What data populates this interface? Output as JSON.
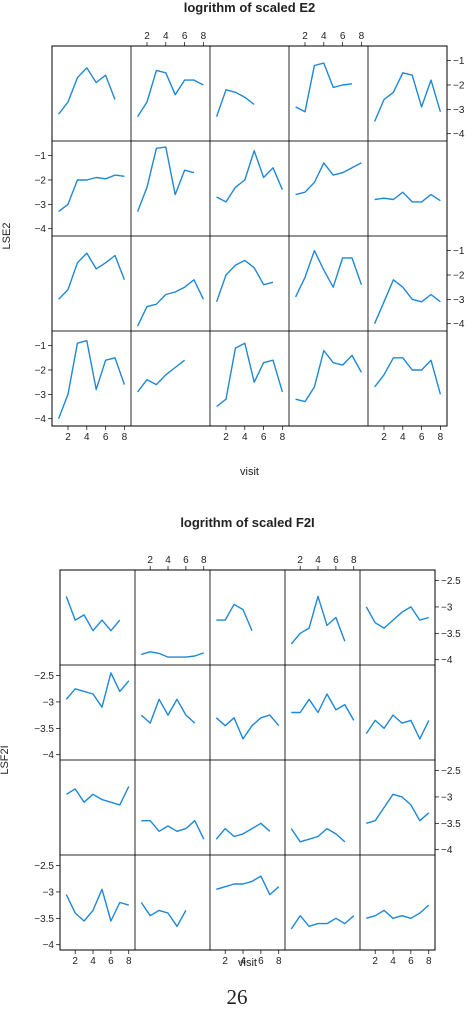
{
  "page_number": "26",
  "colors": {
    "line": "#1f88d6",
    "frame": "#000000",
    "text": "#222222"
  },
  "chart_data": [
    {
      "type": "line",
      "layout": "lattice 5 columns x 4 rows",
      "title": "logrithm of scaled E2",
      "xlabel": "visit",
      "ylabel": "LSE2",
      "x_ticks": [
        2,
        4,
        6,
        8
      ],
      "y_ticks": [
        -1,
        -2,
        -3,
        -4
      ],
      "xlim": [
        0.3,
        8.7
      ],
      "ylim": [
        -4.3,
        -0.4
      ],
      "grid": false,
      "panels": [
        [
          [
            1,
            -3.2
          ],
          [
            2,
            -2.7
          ],
          [
            3,
            -1.7
          ],
          [
            4,
            -1.3
          ],
          [
            5,
            -1.9
          ],
          [
            6,
            -1.6
          ],
          [
            7,
            -2.6
          ]
        ],
        [
          [
            1,
            -3.3
          ],
          [
            2,
            -2.7
          ],
          [
            3,
            -1.4
          ],
          [
            4,
            -1.5
          ],
          [
            5,
            -2.4
          ],
          [
            6,
            -1.8
          ],
          [
            7,
            -1.8
          ],
          [
            8,
            -2.0
          ]
        ],
        [
          [
            1,
            -3.3
          ],
          [
            2,
            -2.2
          ],
          [
            3,
            -2.3
          ],
          [
            4,
            -2.5
          ],
          [
            5,
            -2.8
          ]
        ],
        [
          [
            1,
            -2.9
          ],
          [
            2,
            -3.1
          ],
          [
            3,
            -1.2
          ],
          [
            4,
            -1.1
          ],
          [
            5,
            -2.1
          ],
          [
            6,
            -2.0
          ],
          [
            7,
            -1.95
          ]
        ],
        [
          [
            1,
            -3.5
          ],
          [
            2,
            -2.6
          ],
          [
            3,
            -2.3
          ],
          [
            4,
            -1.5
          ],
          [
            5,
            -1.6
          ],
          [
            6,
            -2.9
          ],
          [
            7,
            -1.8
          ],
          [
            8,
            -3.1
          ]
        ],
        [
          [
            1,
            -3.3
          ],
          [
            2,
            -3.0
          ],
          [
            3,
            -2.0
          ],
          [
            4,
            -2.0
          ],
          [
            5,
            -1.9
          ],
          [
            6,
            -1.95
          ],
          [
            7,
            -1.8
          ],
          [
            8,
            -1.85
          ]
        ],
        [
          [
            1,
            -3.3
          ],
          [
            2,
            -2.3
          ],
          [
            3,
            -0.7
          ],
          [
            4,
            -0.65
          ],
          [
            5,
            -2.6
          ],
          [
            6,
            -1.6
          ],
          [
            7,
            -1.7
          ]
        ],
        [
          [
            1,
            -2.7
          ],
          [
            2,
            -2.9
          ],
          [
            3,
            -2.3
          ],
          [
            4,
            -2.0
          ],
          [
            5,
            -0.8
          ],
          [
            6,
            -1.9
          ],
          [
            7,
            -1.5
          ],
          [
            8,
            -2.4
          ]
        ],
        [
          [
            1,
            -2.6
          ],
          [
            2,
            -2.5
          ],
          [
            3,
            -2.1
          ],
          [
            4,
            -1.3
          ],
          [
            5,
            -1.8
          ],
          [
            6,
            -1.7
          ],
          [
            7,
            -1.5
          ],
          [
            8,
            -1.3
          ]
        ],
        [
          [
            1,
            -2.8
          ],
          [
            2,
            -2.75
          ],
          [
            3,
            -2.8
          ],
          [
            4,
            -2.5
          ],
          [
            5,
            -2.9
          ],
          [
            6,
            -2.9
          ],
          [
            7,
            -2.6
          ],
          [
            8,
            -2.85
          ]
        ],
        [
          [
            1,
            -3.0
          ],
          [
            2,
            -2.6
          ],
          [
            3,
            -1.5
          ],
          [
            4,
            -1.1
          ],
          [
            5,
            -1.75
          ],
          [
            6,
            -1.5
          ],
          [
            7,
            -1.2
          ],
          [
            8,
            -2.2
          ]
        ],
        [
          [
            1,
            -4.1
          ],
          [
            2,
            -3.3
          ],
          [
            3,
            -3.2
          ],
          [
            4,
            -2.8
          ],
          [
            5,
            -2.7
          ],
          [
            6,
            -2.5
          ],
          [
            7,
            -2.2
          ],
          [
            8,
            -3.0
          ]
        ],
        [
          [
            1,
            -3.1
          ],
          [
            2,
            -2.0
          ],
          [
            3,
            -1.6
          ],
          [
            4,
            -1.4
          ],
          [
            5,
            -1.7
          ],
          [
            6,
            -2.4
          ],
          [
            7,
            -2.3
          ]
        ],
        [
          [
            1,
            -2.9
          ],
          [
            2,
            -2.1
          ],
          [
            3,
            -1.0
          ],
          [
            4,
            -1.8
          ],
          [
            5,
            -2.5
          ],
          [
            6,
            -1.3
          ],
          [
            7,
            -1.3
          ],
          [
            8,
            -2.4
          ]
        ],
        [
          [
            1,
            -4.0
          ],
          [
            2,
            -3.1
          ],
          [
            3,
            -2.2
          ],
          [
            4,
            -2.5
          ],
          [
            5,
            -3.0
          ],
          [
            6,
            -3.1
          ],
          [
            7,
            -2.8
          ],
          [
            8,
            -3.1
          ]
        ],
        [
          [
            1,
            -4.0
          ],
          [
            2,
            -3.0
          ],
          [
            3,
            -0.9
          ],
          [
            4,
            -0.8
          ],
          [
            5,
            -2.8
          ],
          [
            6,
            -1.6
          ],
          [
            7,
            -1.5
          ],
          [
            8,
            -2.6
          ]
        ],
        [
          [
            1,
            -2.9
          ],
          [
            2,
            -2.4
          ],
          [
            3,
            -2.6
          ],
          [
            4,
            -2.2
          ],
          [
            5,
            -1.9
          ],
          [
            6,
            -1.6
          ]
        ],
        [
          [
            1,
            -3.5
          ],
          [
            2,
            -3.2
          ],
          [
            3,
            -1.1
          ],
          [
            4,
            -0.9
          ],
          [
            5,
            -2.5
          ],
          [
            6,
            -1.7
          ],
          [
            7,
            -1.6
          ],
          [
            8,
            -2.9
          ]
        ],
        [
          [
            1,
            -3.2
          ],
          [
            2,
            -3.3
          ],
          [
            3,
            -2.7
          ],
          [
            4,
            -1.2
          ],
          [
            5,
            -1.7
          ],
          [
            6,
            -1.8
          ],
          [
            7,
            -1.4
          ],
          [
            8,
            -2.1
          ]
        ],
        [
          [
            1,
            -2.7
          ],
          [
            2,
            -2.2
          ],
          [
            3,
            -1.5
          ],
          [
            4,
            -1.5
          ],
          [
            5,
            -2.0
          ],
          [
            6,
            -2.0
          ],
          [
            7,
            -1.6
          ],
          [
            8,
            -3.0
          ]
        ]
      ]
    },
    {
      "type": "line",
      "layout": "lattice 5 columns x 4 rows",
      "title": "logrithm of scaled F2I",
      "xlabel": "visit",
      "ylabel": "LSF2I",
      "x_ticks": [
        2,
        4,
        6,
        8
      ],
      "y_ticks": [
        -2.5,
        -3.0,
        -3.5,
        -4.0
      ],
      "xlim": [
        0.3,
        8.7
      ],
      "ylim": [
        -4.1,
        -2.3
      ],
      "grid": false,
      "panels": [
        [
          [
            1,
            -2.8
          ],
          [
            2,
            -3.25
          ],
          [
            3,
            -3.15
          ],
          [
            4,
            -3.45
          ],
          [
            5,
            -3.25
          ],
          [
            6,
            -3.45
          ],
          [
            7,
            -3.25
          ]
        ],
        [
          [
            1,
            -3.9
          ],
          [
            2,
            -3.85
          ],
          [
            3,
            -3.88
          ],
          [
            4,
            -3.95
          ],
          [
            5,
            -3.95
          ],
          [
            6,
            -3.95
          ],
          [
            7,
            -3.93
          ],
          [
            8,
            -3.87
          ]
        ],
        [
          [
            1,
            -3.25
          ],
          [
            2,
            -3.25
          ],
          [
            3,
            -2.95
          ],
          [
            4,
            -3.05
          ],
          [
            5,
            -3.45
          ]
        ],
        [
          [
            1,
            -3.7
          ],
          [
            2,
            -3.5
          ],
          [
            3,
            -3.4
          ],
          [
            4,
            -2.8
          ],
          [
            5,
            -3.35
          ],
          [
            6,
            -3.2
          ],
          [
            7,
            -3.65
          ]
        ],
        [
          [
            1,
            -3.0
          ],
          [
            2,
            -3.3
          ],
          [
            3,
            -3.4
          ],
          [
            4,
            -3.25
          ],
          [
            5,
            -3.1
          ],
          [
            6,
            -3.0
          ],
          [
            7,
            -3.25
          ],
          [
            8,
            -3.2
          ]
        ],
        [
          [
            1,
            -2.95
          ],
          [
            2,
            -2.75
          ],
          [
            3,
            -2.8
          ],
          [
            4,
            -2.85
          ],
          [
            5,
            -3.1
          ],
          [
            6,
            -2.45
          ],
          [
            7,
            -2.8
          ],
          [
            8,
            -2.6
          ]
        ],
        [
          [
            1,
            -3.25
          ],
          [
            2,
            -3.4
          ],
          [
            3,
            -2.95
          ],
          [
            4,
            -3.25
          ],
          [
            5,
            -2.95
          ],
          [
            6,
            -3.25
          ],
          [
            7,
            -3.4
          ]
        ],
        [
          [
            1,
            -3.3
          ],
          [
            2,
            -3.45
          ],
          [
            3,
            -3.3
          ],
          [
            4,
            -3.7
          ],
          [
            5,
            -3.45
          ],
          [
            6,
            -3.3
          ],
          [
            7,
            -3.25
          ],
          [
            8,
            -3.45
          ]
        ],
        [
          [
            1,
            -3.2
          ],
          [
            2,
            -3.2
          ],
          [
            3,
            -2.95
          ],
          [
            4,
            -3.2
          ],
          [
            5,
            -2.85
          ],
          [
            6,
            -3.15
          ],
          [
            7,
            -3.05
          ],
          [
            8,
            -3.35
          ]
        ],
        [
          [
            1,
            -3.6
          ],
          [
            2,
            -3.35
          ],
          [
            3,
            -3.5
          ],
          [
            4,
            -3.25
          ],
          [
            5,
            -3.4
          ],
          [
            6,
            -3.35
          ],
          [
            7,
            -3.7
          ],
          [
            8,
            -3.35
          ]
        ],
        [
          [
            1,
            -2.95
          ],
          [
            2,
            -2.85
          ],
          [
            3,
            -3.1
          ],
          [
            4,
            -2.95
          ],
          [
            5,
            -3.05
          ],
          [
            6,
            -3.1
          ],
          [
            7,
            -3.15
          ],
          [
            8,
            -2.8
          ]
        ],
        [
          [
            1,
            -3.45
          ],
          [
            2,
            -3.45
          ],
          [
            3,
            -3.65
          ],
          [
            4,
            -3.55
          ],
          [
            5,
            -3.65
          ],
          [
            6,
            -3.6
          ],
          [
            7,
            -3.45
          ],
          [
            8,
            -3.8
          ]
        ],
        [
          [
            1,
            -3.8
          ],
          [
            2,
            -3.6
          ],
          [
            3,
            -3.75
          ],
          [
            4,
            -3.7
          ],
          [
            5,
            -3.6
          ],
          [
            6,
            -3.5
          ],
          [
            7,
            -3.65
          ]
        ],
        [
          [
            1,
            -3.6
          ],
          [
            2,
            -3.85
          ],
          [
            3,
            -3.8
          ],
          [
            4,
            -3.75
          ],
          [
            5,
            -3.6
          ],
          [
            6,
            -3.7
          ],
          [
            7,
            -3.85
          ]
        ],
        [
          [
            1,
            -3.5
          ],
          [
            2,
            -3.45
          ],
          [
            3,
            -3.2
          ],
          [
            4,
            -2.95
          ],
          [
            5,
            -3.0
          ],
          [
            6,
            -3.15
          ],
          [
            7,
            -3.45
          ],
          [
            8,
            -3.3
          ]
        ],
        [
          [
            1,
            -3.05
          ],
          [
            2,
            -3.4
          ],
          [
            3,
            -3.55
          ],
          [
            4,
            -3.35
          ],
          [
            5,
            -2.95
          ],
          [
            6,
            -3.55
          ],
          [
            7,
            -3.2
          ],
          [
            8,
            -3.25
          ]
        ],
        [
          [
            1,
            -3.2
          ],
          [
            2,
            -3.45
          ],
          [
            3,
            -3.35
          ],
          [
            4,
            -3.4
          ],
          [
            5,
            -3.65
          ],
          [
            6,
            -3.35
          ]
        ],
        [
          [
            1,
            -2.95
          ],
          [
            2,
            -2.9
          ],
          [
            3,
            -2.85
          ],
          [
            4,
            -2.85
          ],
          [
            5,
            -2.8
          ],
          [
            6,
            -2.7
          ],
          [
            7,
            -3.05
          ],
          [
            8,
            -2.9
          ]
        ],
        [
          [
            1,
            -3.7
          ],
          [
            2,
            -3.45
          ],
          [
            3,
            -3.65
          ],
          [
            4,
            -3.6
          ],
          [
            5,
            -3.6
          ],
          [
            6,
            -3.5
          ],
          [
            7,
            -3.6
          ],
          [
            8,
            -3.45
          ]
        ],
        [
          [
            1,
            -3.5
          ],
          [
            2,
            -3.45
          ],
          [
            3,
            -3.35
          ],
          [
            4,
            -3.5
          ],
          [
            5,
            -3.45
          ],
          [
            6,
            -3.5
          ],
          [
            7,
            -3.4
          ],
          [
            8,
            -3.25
          ]
        ]
      ]
    }
  ]
}
